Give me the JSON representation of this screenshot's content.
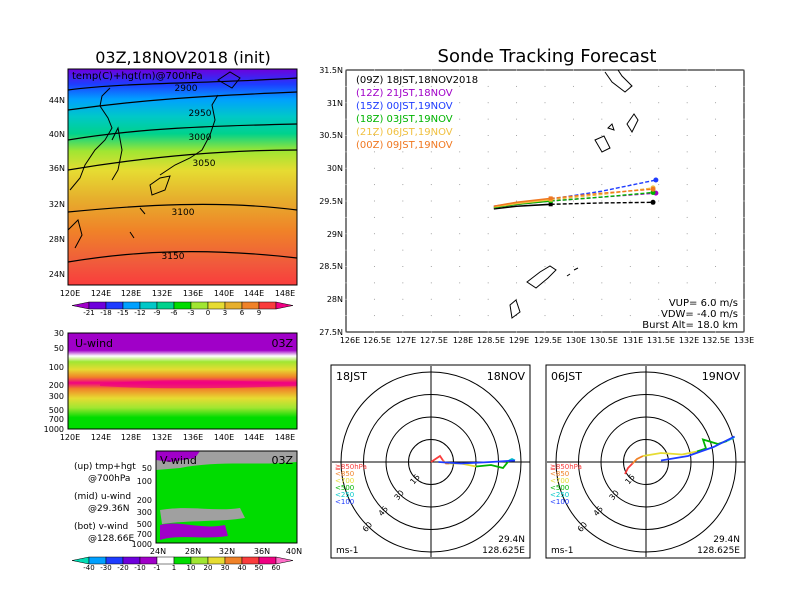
{
  "left": {
    "title": "03Z,18NOV2018 (init)",
    "map_label": "temp(C)+hgt(m)@700hPa",
    "lat_labels": [
      "44N",
      "40N",
      "36N",
      "32N",
      "28N",
      "24N"
    ],
    "lon_labels": [
      "120E",
      "124E",
      "128E",
      "132E",
      "136E",
      "140E",
      "144E",
      "148E"
    ],
    "contour_labels": [
      "2900",
      "2950",
      "3000",
      "3050",
      "3100",
      "3150"
    ],
    "temp_scale": [
      "-21",
      "-18",
      "-15",
      "-12",
      "-9",
      "-6",
      "-3",
      "0",
      "3",
      "6",
      "9"
    ],
    "temp_colors": [
      "#a000c8",
      "#6e00dc",
      "#1e3cff",
      "#00a0ff",
      "#00c8c8",
      "#00d28c",
      "#00dc00",
      "#a0e632",
      "#e6dc32",
      "#e6af2d",
      "#f08228",
      "#fa3c3c",
      "#f00082"
    ],
    "uwind": {
      "label": "U-wind",
      "time": "03Z",
      "p_labels": [
        "30",
        "50",
        "100",
        "200",
        "300",
        "500",
        "700",
        "1000"
      ],
      "lon_labels": [
        "120E",
        "124E",
        "128E",
        "132E",
        "136E",
        "140E",
        "144E",
        "148E"
      ]
    },
    "vwind": {
      "label": "V-wind",
      "time": "03Z",
      "p_labels": [
        "50",
        "100",
        "200",
        "300",
        "500",
        "700",
        "1000"
      ],
      "lat_labels": [
        "24N",
        "28N",
        "32N",
        "36N",
        "40N"
      ]
    },
    "legend_text": [
      "(up) tmp+hgt",
      "@700hPa",
      "(mid) u-wind",
      "@29.36N",
      "(bot) v-wind",
      "@128.66E"
    ],
    "wind_scale": [
      "-40",
      "-30",
      "-20",
      "-10",
      "-1",
      "1",
      "10",
      "20",
      "30",
      "40",
      "50",
      "60"
    ],
    "wind_colors": [
      "#00dcb4",
      "#00a0ff",
      "#1e3cff",
      "#6e00dc",
      "#a000c8",
      "#ffffff",
      "#00dc00",
      "#a0e632",
      "#e6dc32",
      "#f08228",
      "#fa3c3c",
      "#f00082",
      "#ff6ec8"
    ]
  },
  "track": {
    "title": "Sonde Tracking Forecast",
    "lat_labels": [
      "31.5N",
      "31N",
      "30.5N",
      "30N",
      "29.5N",
      "29N",
      "28.5N",
      "28N",
      "27.5N"
    ],
    "lon_labels": [
      "126E",
      "126.5E",
      "127E",
      "127.5E",
      "128E",
      "128.5E",
      "129E",
      "129.5E",
      "130E",
      "130.5E",
      "131E",
      "131.5E",
      "132E",
      "132.5E",
      "133E"
    ],
    "legend": [
      {
        "text": "(09Z)  18JST,18NOV2018",
        "color": "#000000"
      },
      {
        "text": "(12Z)  21JST,18NOV",
        "color": "#a000c8"
      },
      {
        "text": "(15Z)  00JST,19NOV",
        "color": "#1e3cff"
      },
      {
        "text": "(18Z)  03JST,19NOV",
        "color": "#00b400"
      },
      {
        "text": "(21Z)  06JST,19NOV",
        "color": "#f0c040"
      },
      {
        "text": "(00Z)  09JST,19NOV",
        "color": "#f07820"
      }
    ],
    "params": [
      "VUP=  6.0  m/s",
      "VDW=  -4.0  m/s",
      "Burst Alt=  18.0  km"
    ]
  },
  "chart_data": [
    {
      "type": "line",
      "title": "Sonde Tracking Forecast",
      "xlabel": "",
      "ylabel": "",
      "xlim": [
        126,
        133
      ],
      "ylim": [
        27.5,
        31.5
      ],
      "series": [
        {
          "name": "(09Z) 18JST,18NOV2018",
          "color": "#000000",
          "x": [
            128.6,
            129.0,
            129.6,
            130.5,
            131.4
          ],
          "y": [
            29.38,
            29.42,
            29.45,
            29.47,
            29.48
          ]
        },
        {
          "name": "(12Z) 21JST,18NOV",
          "color": "#a000c8",
          "x": [
            128.6,
            129.0,
            129.6,
            130.5,
            131.45
          ],
          "y": [
            29.4,
            29.45,
            29.5,
            29.56,
            29.62
          ]
        },
        {
          "name": "(15Z) 00JST,19NOV",
          "color": "#1e3cff",
          "x": [
            128.6,
            129.0,
            129.6,
            130.5,
            131.45
          ],
          "y": [
            29.42,
            29.47,
            29.53,
            29.65,
            29.82
          ]
        },
        {
          "name": "(18Z) 03JST,19NOV",
          "color": "#00b400",
          "x": [
            128.6,
            129.0,
            129.6,
            130.5,
            131.4
          ],
          "y": [
            29.4,
            29.45,
            29.5,
            29.56,
            29.63
          ]
        },
        {
          "name": "(21Z) 06JST,19NOV",
          "color": "#f0c040",
          "x": [
            128.6,
            129.0,
            129.6,
            130.5,
            131.4
          ],
          "y": [
            29.41,
            29.46,
            29.52,
            29.6,
            29.7
          ]
        },
        {
          "name": "(00Z) 09JST,19NOV",
          "color": "#f07820",
          "x": [
            128.6,
            129.0,
            129.6,
            130.5,
            131.4
          ],
          "y": [
            29.42,
            29.48,
            29.54,
            29.62,
            29.68
          ]
        }
      ]
    },
    {
      "type": "line",
      "title": "18JST 18NOV",
      "corner_labels": {
        "tl": "18JST",
        "tr": "18NOV",
        "bl": "ms-1",
        "br1": "29.4N",
        "br2": "128.625E"
      },
      "ring_labels": [
        "15",
        "30",
        "45",
        "60"
      ],
      "levels": [
        {
          "name": "≧850hPa",
          "color": "#fa3c3c"
        },
        {
          "name": "<850",
          "color": "#f08228"
        },
        {
          "name": "<700",
          "color": "#e6dc32"
        },
        {
          "name": "<500",
          "color": "#00b400"
        },
        {
          "name": "<250",
          "color": "#00c8c8"
        },
        {
          "name": "<100",
          "color": "#1e3cff"
        }
      ],
      "hodograph": [
        {
          "level": "≧850hPa",
          "u": [
            0,
            3,
            6,
            8
          ],
          "v": [
            0,
            2,
            4,
            1
          ]
        },
        {
          "level": "<850",
          "u": [
            8,
            10,
            12
          ],
          "v": [
            1,
            -1,
            -1
          ]
        },
        {
          "level": "<700",
          "u": [
            12,
            20,
            30
          ],
          "v": [
            -1,
            -1,
            -3
          ]
        },
        {
          "level": "<500",
          "u": [
            30,
            40,
            48,
            52
          ],
          "v": [
            -3,
            -2,
            -4,
            1
          ]
        },
        {
          "level": "<250",
          "u": [
            52,
            54,
            56
          ],
          "v": [
            1,
            2,
            1
          ]
        },
        {
          "level": "<100",
          "u": [
            56,
            40,
            20,
            5
          ],
          "v": [
            1,
            0,
            -1,
            0
          ]
        }
      ]
    },
    {
      "type": "line",
      "title": "06JST 19NOV",
      "corner_labels": {
        "tl": "06JST",
        "tr": "19NOV",
        "bl": "ms-1",
        "br1": "29.4N",
        "br2": "128.625E"
      },
      "ring_labels": [
        "15",
        "30",
        "45",
        "60"
      ],
      "levels": [
        {
          "name": "≧850hPa",
          "color": "#fa3c3c"
        },
        {
          "name": "<850",
          "color": "#f08228"
        },
        {
          "name": "<700",
          "color": "#e6dc32"
        },
        {
          "name": "<500",
          "color": "#00b400"
        },
        {
          "name": "<250",
          "color": "#00c8c8"
        },
        {
          "name": "<100",
          "color": "#1e3cff"
        }
      ],
      "hodograph": [
        {
          "level": "≧850hPa",
          "u": [
            -14,
            -12,
            -9
          ],
          "v": [
            -8,
            -4,
            -1
          ]
        },
        {
          "level": "<850",
          "u": [
            -9,
            -6,
            -2
          ],
          "v": [
            -1,
            2,
            4
          ]
        },
        {
          "level": "<700",
          "u": [
            -2,
            10,
            24,
            34
          ],
          "v": [
            4,
            6,
            5,
            7
          ]
        },
        {
          "level": "<500",
          "u": [
            34,
            40,
            38,
            48,
            54
          ],
          "v": [
            7,
            9,
            15,
            12,
            14
          ]
        },
        {
          "level": "<250",
          "u": [
            54,
            58,
            59
          ],
          "v": [
            14,
            16,
            17
          ]
        },
        {
          "level": "<100",
          "u": [
            59,
            45,
            28,
            10
          ],
          "v": [
            17,
            10,
            4,
            1
          ]
        }
      ]
    }
  ]
}
